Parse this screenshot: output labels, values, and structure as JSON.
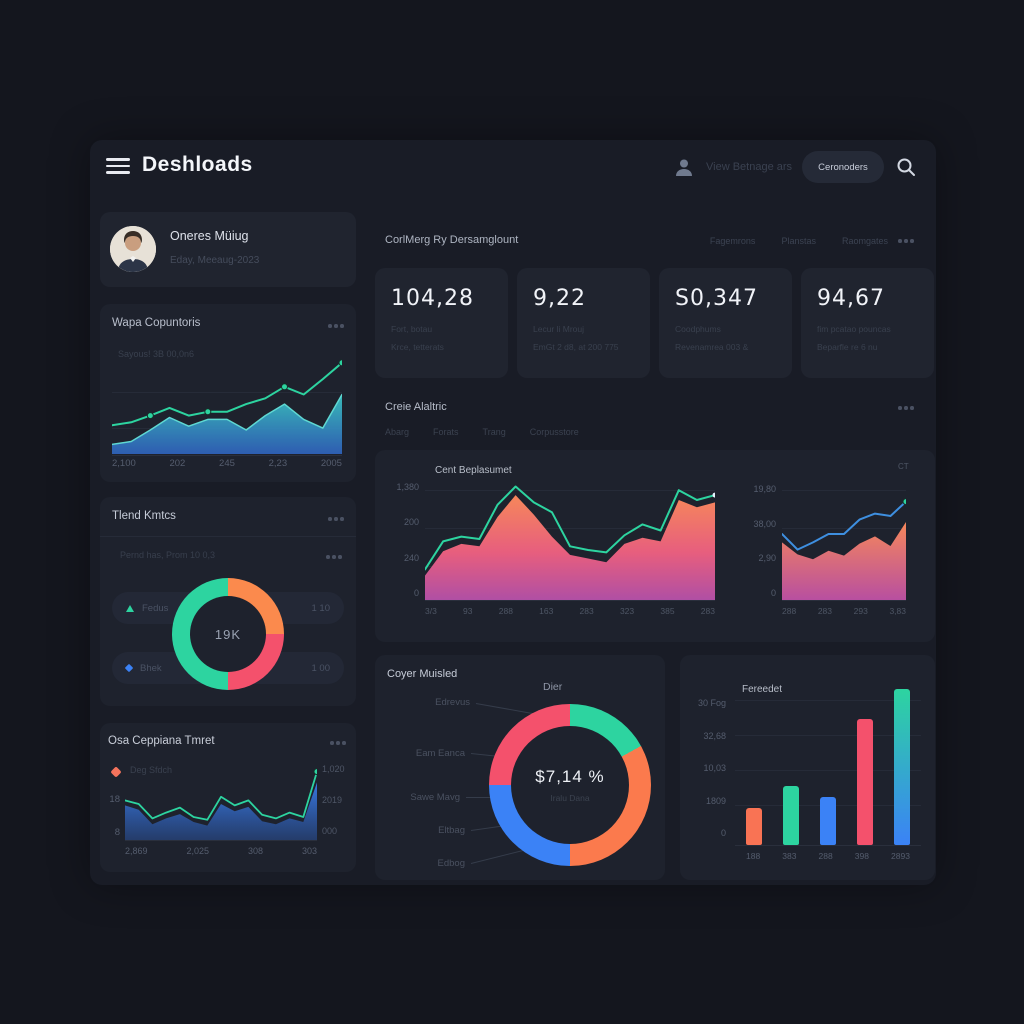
{
  "header": {
    "title": "Deshloads",
    "user_text": "View Betnage ars",
    "button_label": "Ceronoders"
  },
  "icons": {
    "menu": "hamburger-icon",
    "user": "user-icon",
    "search": "magnifier-icon",
    "more": "ellipsis-icon",
    "legend_triangle": "triangle-up-icon",
    "legend_diamond": "diamond-icon"
  },
  "colors": {
    "background": "#14161e",
    "panel": "#191c26",
    "card": "#1e222d",
    "green": "#2dd4a0",
    "teal": "#35c8c2",
    "blue": "#3b82f6",
    "orange": "#f4845f",
    "red": "#f4516c",
    "magenta": "#b44fa0"
  },
  "profile": {
    "name": "Oneres Müiug",
    "subtitle": "Eday, Meeaug-2023"
  },
  "stats": {
    "title": "CorlMerg Ry Dersamglount",
    "tabs": [
      "Fagemrons",
      "Planstas",
      "Raomgates"
    ],
    "cards": [
      {
        "value": "104,28",
        "line1": "Fort, botau",
        "line2": "Krce, tetterats"
      },
      {
        "value": "9,22",
        "line1": "Lecur li Mrouj",
        "line2": "EmGt 2 d8, at 200 775"
      },
      {
        "value": "S0,347",
        "line1": "Coodphums",
        "line2": "Revenamrea 003 &"
      },
      {
        "value": "94,67",
        "line1": "fim pcatao pouncas",
        "line2": "Beparfle re 6 nu"
      }
    ]
  },
  "analytics": {
    "title": "Creie Alaltric",
    "tabs": [
      "Abarg",
      "Forats",
      "Trang",
      "Corpusstore"
    ]
  },
  "charts": {
    "wave": {
      "title": "Wapa Copuntoris",
      "subtitle": "Sayous! 3B 00,0n6",
      "type": "line+area",
      "x": [
        "2,100",
        "202",
        "245",
        "2,23",
        "2005"
      ],
      "line": [
        30,
        33,
        40,
        48,
        40,
        44,
        44,
        52,
        58,
        70,
        62,
        78,
        95
      ],
      "area": [
        10,
        13,
        25,
        38,
        29,
        36,
        36,
        25,
        40,
        52,
        36,
        27,
        62
      ]
    },
    "trend_donut": {
      "title": "Tlend Kmtcs",
      "subtitle": "Pernd has, Prom 10 0,3",
      "type": "donut",
      "center": "19K",
      "segments": [
        {
          "name": "orange",
          "color": "#fb8a4d",
          "pct": 25
        },
        {
          "name": "red",
          "color": "#f4516c",
          "pct": 25
        },
        {
          "name": "green",
          "color": "#2dd4a0",
          "pct": 50
        }
      ],
      "legend": [
        {
          "label": "Fedus",
          "value": "1 10"
        },
        {
          "label": "Bhek",
          "value": "1 00"
        }
      ]
    },
    "mini": {
      "title": "Osa Ceppiana Tmret",
      "legend": "Deg Sfdch",
      "type": "line+area",
      "y_left": [
        "18",
        "8"
      ],
      "y_right": [
        "1,020",
        "2019",
        "000"
      ],
      "x": [
        "2,869",
        "2,025",
        "308",
        "303"
      ],
      "line": [
        55,
        50,
        30,
        38,
        45,
        32,
        28,
        60,
        48,
        55,
        35,
        30,
        38,
        32,
        95
      ],
      "area": [
        48,
        42,
        22,
        30,
        36,
        25,
        20,
        50,
        40,
        46,
        26,
        22,
        30,
        25,
        80
      ]
    },
    "main": {
      "title": "Cent Beplasumet",
      "type": "line+area",
      "y": [
        "1,380",
        "200",
        "240",
        "0"
      ],
      "x": [
        "3/3",
        "93",
        "288",
        "163",
        "283",
        "323",
        "385",
        "283"
      ],
      "line": [
        25,
        48,
        52,
        50,
        78,
        93,
        80,
        72,
        44,
        41,
        39,
        53,
        62,
        57,
        90,
        82,
        86
      ],
      "area": [
        20,
        40,
        46,
        44,
        68,
        86,
        70,
        52,
        37,
        34,
        31,
        46,
        51,
        48,
        82,
        76,
        80
      ]
    },
    "side": {
      "corner": "CT",
      "type": "line+area",
      "y": [
        "19,80",
        "38,00",
        "2,90",
        "0"
      ],
      "x": [
        "288",
        "283",
        "293",
        "3,83"
      ],
      "line": [
        55,
        42,
        48,
        55,
        55,
        67,
        72,
        70,
        82
      ],
      "area": [
        48,
        38,
        34,
        41,
        37,
        47,
        53,
        45,
        65
      ]
    },
    "bottom_donut": {
      "title": "Coyer Muisled",
      "top_label": "Dier",
      "type": "donut",
      "center": "$7,14 %",
      "center_sub": "Iralu Dana",
      "labels": [
        "Edrevus",
        "Eam Eanca",
        "Sawe Mavg",
        "Eltbag",
        "Edbog"
      ],
      "segments": [
        {
          "name": "green",
          "color": "#2dd4a0",
          "pct": 17
        },
        {
          "name": "orange",
          "color": "#fb7a4d",
          "pct": 33
        },
        {
          "name": "blue",
          "color": "#3b82f6",
          "pct": 25
        },
        {
          "name": "red",
          "color": "#f4516c",
          "pct": 25
        }
      ]
    },
    "bars": {
      "title": "Fereedet",
      "type": "bar",
      "y": [
        "30 Fog",
        "32,68",
        "10,03",
        "1809",
        "0"
      ],
      "x": [
        "188",
        "383",
        "288",
        "398",
        "2893"
      ],
      "values": [
        24,
        38,
        31,
        81,
        100
      ],
      "colors": [
        "#f97354",
        "#2dd4a0",
        "#3b82f6",
        "#f4516c",
        "gradient"
      ]
    }
  }
}
